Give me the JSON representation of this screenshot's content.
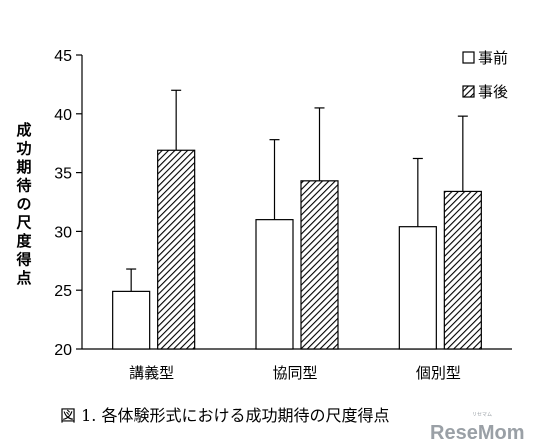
{
  "chart_data": {
    "type": "bar",
    "categories": [
      "講義型",
      "協同型",
      "個別型"
    ],
    "series": [
      {
        "name": "事前",
        "values": [
          24.9,
          31.0,
          30.4
        ],
        "errors": [
          1.9,
          6.8,
          5.8
        ],
        "fill": "white"
      },
      {
        "name": "事後",
        "values": [
          36.9,
          34.3,
          33.4
        ],
        "errors": [
          5.1,
          6.2,
          6.4
        ],
        "fill": "hatched"
      }
    ],
    "ylabel": "成功期待の尺度得点",
    "xlabel": "",
    "ylim": [
      20,
      45
    ],
    "yticks": [
      20,
      25,
      30,
      35,
      40,
      45
    ],
    "grid": false,
    "legend_position": "top-right",
    "caption": "図 1. 各体験形式における成功期待の尺度得点"
  },
  "watermark": {
    "text": "ReseMom",
    "ruby": "リセマム",
    "color": "#9aa0a6"
  },
  "colors": {
    "axis": "#000000",
    "bar_stroke": "#000000",
    "background": "#ffffff"
  }
}
